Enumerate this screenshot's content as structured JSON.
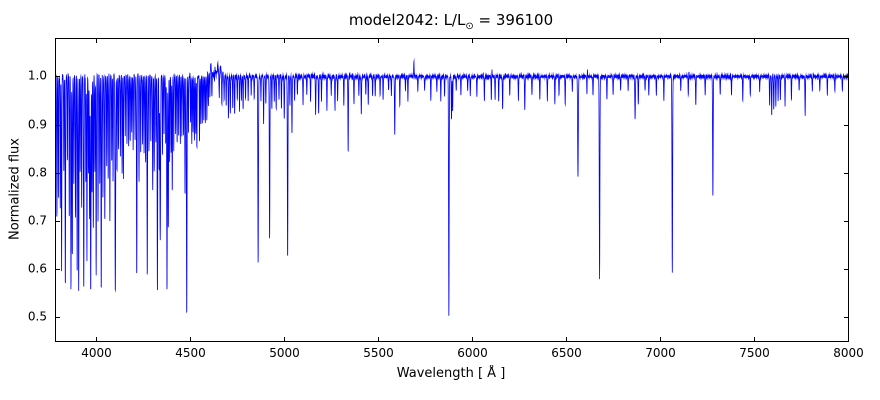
{
  "figure": {
    "title_prefix": "model2042: L/L",
    "title_sub": "⊙",
    "title_suffix": " = 396100"
  },
  "chart_data": {
    "type": "line",
    "title": "model2042: L/L⊙ = 396100",
    "xlabel": "Wavelength [ Å ]",
    "ylabel": "Normalized flux",
    "xlim": [
      3780,
      8000
    ],
    "ylim": [
      0.45,
      1.08
    ],
    "xticks": [
      4000,
      4500,
      5000,
      5500,
      6000,
      6500,
      7000,
      7500,
      8000
    ],
    "yticks": [
      0.5,
      0.6,
      0.7,
      0.8,
      0.9,
      1.0
    ],
    "grid": false,
    "legend": "none",
    "line_color": "#0000ff",
    "axes_color": "#000000",
    "background": "#ffffff",
    "continuum": 1.0,
    "series_description": "Normalized stellar spectrum: continuum at 1.0 with absorption lines given as [wavelength_A, depth_below_continuum, sigma_A]; dense metal-line forest below 4600 A, strong lines H-beta 4861 (0.61), He 4922 (0.66), 5018 (0.62), Na/He 5876 (0.50), H-alpha 6563 (0.79), He 6678 (0.58), He 7065 (0.59), He 7281 (0.75)",
    "noise": {
      "blue_end": 4250,
      "blue_amp": 0.007,
      "mid_end": 5300,
      "mid_amp": 0.004,
      "red_amp": 0.0025,
      "boost_regions": [
        {
          "from": 4590,
          "to": 4675,
          "amp": 0.012
        }
      ]
    },
    "absorption_lines": [
      [
        3790,
        0.3,
        1.3
      ],
      [
        3798,
        0.25,
        1.2
      ],
      [
        3808,
        0.28,
        1.2
      ],
      [
        3815,
        0.4,
        1.3
      ],
      [
        3827,
        0.2,
        1.2
      ],
      [
        3835,
        0.44,
        1.4
      ],
      [
        3846,
        0.18,
        1.2
      ],
      [
        3856,
        0.3,
        1.2
      ],
      [
        3865,
        0.45,
        1.4
      ],
      [
        3872,
        0.38,
        1.3
      ],
      [
        3880,
        0.22,
        1.2
      ],
      [
        3889,
        0.3,
        1.4
      ],
      [
        3898,
        0.42,
        1.3
      ],
      [
        3906,
        0.45,
        1.4
      ],
      [
        3914,
        0.2,
        1.2
      ],
      [
        3922,
        0.28,
        1.2
      ],
      [
        3933,
        0.44,
        1.6
      ],
      [
        3944,
        0.22,
        1.2
      ],
      [
        3950,
        0.38,
        1.3
      ],
      [
        3958,
        0.2,
        1.2
      ],
      [
        3964,
        0.3,
        1.2
      ],
      [
        3970,
        0.45,
        1.6
      ],
      [
        3977,
        0.25,
        1.2
      ],
      [
        3984,
        0.32,
        1.2
      ],
      [
        3992,
        0.2,
        1.2
      ],
      [
        3999,
        0.42,
        1.4
      ],
      [
        4009,
        0.3,
        1.3
      ],
      [
        4018,
        0.22,
        1.2
      ],
      [
        4026,
        0.45,
        1.4
      ],
      [
        4035,
        0.25,
        1.2
      ],
      [
        4045,
        0.3,
        1.3
      ],
      [
        4055,
        0.18,
        1.2
      ],
      [
        4063,
        0.22,
        1.2
      ],
      [
        4072,
        0.3,
        1.3
      ],
      [
        4082,
        0.18,
        1.2
      ],
      [
        4089,
        0.22,
        1.2
      ],
      [
        4101,
        0.45,
        1.8
      ],
      [
        4110,
        0.2,
        1.2
      ],
      [
        4118,
        0.15,
        1.2
      ],
      [
        4128,
        0.16,
        1.2
      ],
      [
        4137,
        0.2,
        1.2
      ],
      [
        4144,
        0.22,
        1.2
      ],
      [
        4154,
        0.12,
        1.2
      ],
      [
        4163,
        0.14,
        1.2
      ],
      [
        4172,
        0.15,
        1.2
      ],
      [
        4180,
        0.14,
        1.2
      ],
      [
        4188,
        0.12,
        1.2
      ],
      [
        4196,
        0.15,
        1.2
      ],
      [
        4206,
        0.14,
        1.2
      ],
      [
        4215,
        0.42,
        1.4
      ],
      [
        4227,
        0.22,
        1.3
      ],
      [
        4236,
        0.16,
        1.2
      ],
      [
        4246,
        0.14,
        1.2
      ],
      [
        4254,
        0.16,
        1.2
      ],
      [
        4262,
        0.18,
        1.2
      ],
      [
        4271,
        0.42,
        1.4
      ],
      [
        4280,
        0.16,
        1.2
      ],
      [
        4290,
        0.14,
        1.2
      ],
      [
        4300,
        0.24,
        1.4
      ],
      [
        4308,
        0.2,
        1.3
      ],
      [
        4317,
        0.14,
        1.2
      ],
      [
        4325,
        0.45,
        1.5
      ],
      [
        4334,
        0.2,
        1.2
      ],
      [
        4340,
        0.34,
        1.8
      ],
      [
        4352,
        0.16,
        1.2
      ],
      [
        4360,
        0.12,
        1.2
      ],
      [
        4369,
        0.14,
        1.2
      ],
      [
        4376,
        0.45,
        1.5
      ],
      [
        4383,
        0.32,
        1.3
      ],
      [
        4390,
        0.18,
        1.2
      ],
      [
        4398,
        0.16,
        1.2
      ],
      [
        4404,
        0.24,
        1.3
      ],
      [
        4412,
        0.16,
        1.2
      ],
      [
        4422,
        0.12,
        1.2
      ],
      [
        4430,
        0.14,
        1.2
      ],
      [
        4438,
        0.12,
        1.2
      ],
      [
        4447,
        0.14,
        1.2
      ],
      [
        4455,
        0.13,
        1.2
      ],
      [
        4464,
        0.12,
        1.2
      ],
      [
        4472,
        0.25,
        1.3
      ],
      [
        4481,
        0.5,
        1.5
      ],
      [
        4490,
        0.12,
        1.2
      ],
      [
        4501,
        0.13,
        1.2
      ],
      [
        4508,
        0.14,
        1.2
      ],
      [
        4515,
        0.12,
        1.2
      ],
      [
        4522,
        0.13,
        1.2
      ],
      [
        4529,
        0.12,
        1.2
      ],
      [
        4535,
        0.15,
        1.2
      ],
      [
        4549,
        0.14,
        1.2
      ],
      [
        4556,
        0.1,
        1.2
      ],
      [
        4564,
        0.1,
        1.2
      ],
      [
        4572,
        0.09,
        1.2
      ],
      [
        4580,
        0.1,
        1.2
      ],
      [
        4588,
        0.09,
        1.2
      ],
      [
        4596,
        0.07,
        1.2
      ],
      [
        4604,
        0.05,
        1.2
      ],
      [
        4615,
        0.05,
        1.2
      ],
      [
        4629,
        0.04,
        1.2
      ],
      [
        4654,
        0.05,
        1.2
      ],
      [
        4668,
        0.07,
        1.2
      ],
      [
        4680,
        0.05,
        1.2
      ],
      [
        4691,
        0.06,
        1.2
      ],
      [
        4703,
        0.09,
        1.3
      ],
      [
        4713,
        0.08,
        1.2
      ],
      [
        4726,
        0.07,
        1.2
      ],
      [
        4736,
        0.08,
        1.2
      ],
      [
        4750,
        0.05,
        1.2
      ],
      [
        4762,
        0.07,
        1.2
      ],
      [
        4772,
        0.05,
        1.2
      ],
      [
        4781,
        0.07,
        1.2
      ],
      [
        4794,
        0.05,
        1.2
      ],
      [
        4808,
        0.05,
        1.2
      ],
      [
        4824,
        0.04,
        1.2
      ],
      [
        4840,
        0.05,
        1.2
      ],
      [
        4861,
        0.39,
        1.6
      ],
      [
        4876,
        0.05,
        1.2
      ],
      [
        4890,
        0.1,
        1.3
      ],
      [
        4902,
        0.06,
        1.2
      ],
      [
        4922,
        0.34,
        1.5
      ],
      [
        4934,
        0.07,
        1.2
      ],
      [
        4947,
        0.05,
        1.2
      ],
      [
        4957,
        0.07,
        1.2
      ],
      [
        4972,
        0.05,
        1.2
      ],
      [
        4985,
        0.07,
        1.2
      ],
      [
        5000,
        0.09,
        1.3
      ],
      [
        5018,
        0.38,
        1.5
      ],
      [
        5030,
        0.06,
        1.2
      ],
      [
        5041,
        0.12,
        1.3
      ],
      [
        5055,
        0.05,
        1.2
      ],
      [
        5070,
        0.04,
        1.2
      ],
      [
        5100,
        0.06,
        1.2
      ],
      [
        5120,
        0.04,
        1.2
      ],
      [
        5140,
        0.05,
        1.2
      ],
      [
        5167,
        0.08,
        1.3
      ],
      [
        5183,
        0.08,
        1.3
      ],
      [
        5198,
        0.05,
        1.2
      ],
      [
        5227,
        0.07,
        1.2
      ],
      [
        5250,
        0.04,
        1.2
      ],
      [
        5270,
        0.07,
        1.3
      ],
      [
        5284,
        0.05,
        1.2
      ],
      [
        5317,
        0.06,
        1.2
      ],
      [
        5340,
        0.16,
        1.3
      ],
      [
        5371,
        0.06,
        1.2
      ],
      [
        5397,
        0.04,
        1.2
      ],
      [
        5410,
        0.08,
        1.3
      ],
      [
        5434,
        0.04,
        1.2
      ],
      [
        5447,
        0.06,
        1.2
      ],
      [
        5470,
        0.04,
        1.2
      ],
      [
        5484,
        0.04,
        1.2
      ],
      [
        5510,
        0.04,
        1.2
      ],
      [
        5526,
        0.05,
        1.2
      ],
      [
        5555,
        0.03,
        1.2
      ],
      [
        5570,
        0.04,
        1.2
      ],
      [
        5588,
        0.12,
        1.4
      ],
      [
        5615,
        0.06,
        1.2
      ],
      [
        5645,
        0.03,
        1.2
      ],
      [
        5658,
        0.05,
        1.2
      ],
      [
        5711,
        0.03,
        1.2
      ],
      [
        5747,
        0.03,
        1.2
      ],
      [
        5780,
        0.05,
        1.2
      ],
      [
        5812,
        0.03,
        1.2
      ],
      [
        5833,
        0.05,
        1.2
      ],
      [
        5853,
        0.04,
        1.2
      ],
      [
        5876,
        0.5,
        1.5
      ],
      [
        5890,
        0.09,
        1.3
      ],
      [
        5896,
        0.07,
        1.2
      ],
      [
        5915,
        0.03,
        1.2
      ],
      [
        5940,
        0.04,
        1.2
      ],
      [
        5976,
        0.03,
        1.2
      ],
      [
        5990,
        0.04,
        1.2
      ],
      [
        6025,
        0.04,
        1.2
      ],
      [
        6065,
        0.05,
        1.2
      ],
      [
        6102,
        0.05,
        1.2
      ],
      [
        6122,
        0.05,
        1.2
      ],
      [
        6141,
        0.05,
        1.2
      ],
      [
        6162,
        0.07,
        1.3
      ],
      [
        6200,
        0.04,
        1.2
      ],
      [
        6246,
        0.05,
        1.2
      ],
      [
        6280,
        0.07,
        1.3
      ],
      [
        6318,
        0.04,
        1.2
      ],
      [
        6360,
        0.05,
        1.2
      ],
      [
        6400,
        0.05,
        1.2
      ],
      [
        6440,
        0.06,
        1.2
      ],
      [
        6462,
        0.04,
        1.2
      ],
      [
        6495,
        0.06,
        1.2
      ],
      [
        6533,
        0.03,
        1.2
      ],
      [
        6563,
        0.21,
        1.8
      ],
      [
        6611,
        0.04,
        1.2
      ],
      [
        6643,
        0.04,
        1.2
      ],
      [
        6678,
        0.42,
        1.6
      ],
      [
        6717,
        0.05,
        1.2
      ],
      [
        6750,
        0.04,
        1.2
      ],
      [
        6790,
        0.03,
        1.2
      ],
      [
        6830,
        0.03,
        1.2
      ],
      [
        6867,
        0.09,
        1.5
      ],
      [
        6884,
        0.06,
        1.3
      ],
      [
        6920,
        0.03,
        1.2
      ],
      [
        6940,
        0.04,
        1.2
      ],
      [
        6980,
        0.04,
        1.2
      ],
      [
        7020,
        0.05,
        1.2
      ],
      [
        7065,
        0.41,
        1.6
      ],
      [
        7110,
        0.03,
        1.2
      ],
      [
        7150,
        0.04,
        1.2
      ],
      [
        7190,
        0.06,
        1.3
      ],
      [
        7240,
        0.04,
        1.2
      ],
      [
        7281,
        0.25,
        1.5
      ],
      [
        7320,
        0.04,
        1.2
      ],
      [
        7380,
        0.04,
        1.2
      ],
      [
        7440,
        0.05,
        1.2
      ],
      [
        7480,
        0.04,
        1.2
      ],
      [
        7530,
        0.03,
        1.2
      ],
      [
        7583,
        0.06,
        1.3
      ],
      [
        7594,
        0.08,
        1.3
      ],
      [
        7605,
        0.07,
        1.3
      ],
      [
        7616,
        0.06,
        1.3
      ],
      [
        7628,
        0.05,
        1.2
      ],
      [
        7640,
        0.05,
        1.2
      ],
      [
        7665,
        0.06,
        1.2
      ],
      [
        7699,
        0.05,
        1.2
      ],
      [
        7740,
        0.03,
        1.2
      ],
      [
        7772,
        0.08,
        1.3
      ],
      [
        7810,
        0.03,
        1.2
      ],
      [
        7850,
        0.03,
        1.2
      ],
      [
        7890,
        0.04,
        1.2
      ],
      [
        7930,
        0.03,
        1.2
      ],
      [
        7970,
        0.03,
        1.2
      ]
    ],
    "emission_spikes": [
      [
        4500,
        0.045,
        1.2
      ],
      [
        4609,
        0.02,
        2.0
      ],
      [
        4630,
        0.025,
        2.2
      ],
      [
        4646,
        0.022,
        2.0
      ],
      [
        4661,
        0.02,
        1.8
      ],
      [
        5690,
        0.032,
        1.2
      ],
      [
        6105,
        0.015,
        1.0
      ],
      [
        6613,
        0.02,
        1.0
      ],
      [
        7153,
        0.012,
        1.0
      ]
    ]
  }
}
